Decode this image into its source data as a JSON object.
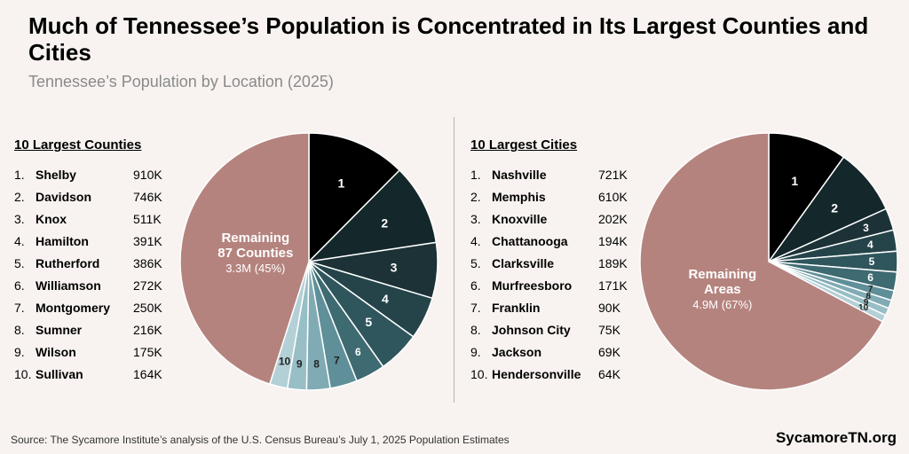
{
  "title": "Much of Tennessee’s Population is Concentrated in Its Largest Counties and Cities",
  "subtitle": "Tennessee’s Population by Location (2025)",
  "source": "Source: The Sycamore Institute’s analysis of the U.S. Census Bureau’s July 1, 2025 Population Estimates",
  "brand": "SycamoreTN.org",
  "counties": {
    "heading": "10 Largest Counties",
    "items": [
      {
        "rank": "1.",
        "name": "Shelby",
        "value": "910K"
      },
      {
        "rank": "2.",
        "name": "Davidson",
        "value": "746K"
      },
      {
        "rank": "3.",
        "name": "Knox",
        "value": "511K"
      },
      {
        "rank": "4.",
        "name": "Hamilton",
        "value": "391K"
      },
      {
        "rank": "5.",
        "name": "Rutherford",
        "value": "386K"
      },
      {
        "rank": "6.",
        "name": "Williamson",
        "value": "272K"
      },
      {
        "rank": "7.",
        "name": "Montgomery",
        "value": "250K"
      },
      {
        "rank": "8.",
        "name": "Sumner",
        "value": "216K"
      },
      {
        "rank": "9.",
        "name": "Wilson",
        "value": "175K"
      },
      {
        "rank": "10.",
        "name": "Sullivan",
        "value": "164K"
      }
    ]
  },
  "cities": {
    "heading": "10 Largest Cities",
    "items": [
      {
        "rank": "1.",
        "name": "Nashville",
        "value": "721K"
      },
      {
        "rank": "2.",
        "name": "Memphis",
        "value": "610K"
      },
      {
        "rank": "3.",
        "name": "Knoxville",
        "value": "202K"
      },
      {
        "rank": "4.",
        "name": "Chattanooga",
        "value": "194K"
      },
      {
        "rank": "5.",
        "name": "Clarksville",
        "value": "189K"
      },
      {
        "rank": "6.",
        "name": "Murfreesboro",
        "value": "171K"
      },
      {
        "rank": "7.",
        "name": "Franklin",
        "value": "90K"
      },
      {
        "rank": "8.",
        "name": "Johnson City",
        "value": "75K"
      },
      {
        "rank": "9.",
        "name": "Jackson",
        "value": "69K"
      },
      {
        "rank": "10.",
        "name": "Hendersonville",
        "value": "64K"
      }
    ]
  },
  "chart_data": [
    {
      "type": "pie",
      "title": "",
      "categories": [
        "1",
        "2",
        "3",
        "4",
        "5",
        "6",
        "7",
        "8",
        "9",
        "10",
        "Remaining 87 Counties"
      ],
      "values": [
        910,
        746,
        511,
        391,
        386,
        272,
        250,
        216,
        175,
        164,
        3300
      ],
      "remaining_label": [
        "Remaining",
        "87 Counties"
      ],
      "remaining_value_label": "3.3M (45%)",
      "colors": [
        "#000000",
        "#14272a",
        "#1c3236",
        "#24444a",
        "#2f565c",
        "#3e6a71",
        "#5f8f98",
        "#80abb4",
        "#98bec6",
        "#b3d0d6",
        "#b5837e"
      ]
    },
    {
      "type": "pie",
      "title": "",
      "categories": [
        "1",
        "2",
        "3",
        "4",
        "5",
        "6",
        "7",
        "8",
        "9",
        "10",
        "Remaining Areas"
      ],
      "values": [
        721,
        610,
        202,
        194,
        189,
        171,
        90,
        75,
        69,
        64,
        4900
      ],
      "remaining_label": [
        "Remaining",
        "Areas"
      ],
      "remaining_value_label": "4.9M (67%)",
      "colors": [
        "#000000",
        "#14272a",
        "#1c3236",
        "#24444a",
        "#2f565c",
        "#3e6a71",
        "#5f8f98",
        "#80abb4",
        "#98bec6",
        "#b3d0d6",
        "#b5837e"
      ]
    }
  ]
}
